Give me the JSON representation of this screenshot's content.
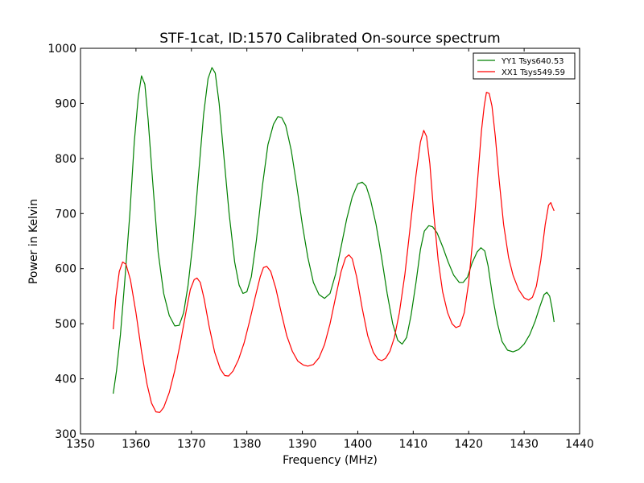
{
  "chart_data": {
    "type": "line",
    "title": "STF-1cat, ID:1570 Calibrated On-source spectrum",
    "xlabel": "Frequency (MHz)",
    "ylabel": "Power in Kelvin",
    "xlim": [
      1350,
      1440
    ],
    "ylim": [
      300,
      1000
    ],
    "xticks": [
      1350,
      1360,
      1370,
      1380,
      1390,
      1400,
      1410,
      1420,
      1430,
      1440
    ],
    "yticks": [
      300,
      400,
      500,
      600,
      700,
      800,
      900,
      1000
    ],
    "grid": false,
    "legend_position": "top-right",
    "series": [
      {
        "name": "YY1 Tsys640.53",
        "color": "#008000",
        "points": [
          [
            1355.9,
            373
          ],
          [
            1356.5,
            415
          ],
          [
            1357.2,
            480
          ],
          [
            1358.0,
            580
          ],
          [
            1358.9,
            700
          ],
          [
            1359.7,
            830
          ],
          [
            1360.4,
            910
          ],
          [
            1361.0,
            950
          ],
          [
            1361.6,
            935
          ],
          [
            1362.2,
            870
          ],
          [
            1363.0,
            760
          ],
          [
            1364.0,
            630
          ],
          [
            1365.0,
            555
          ],
          [
            1366.0,
            515
          ],
          [
            1367.0,
            496
          ],
          [
            1367.8,
            497
          ],
          [
            1368.6,
            520
          ],
          [
            1369.4,
            570
          ],
          [
            1370.3,
            650
          ],
          [
            1371.2,
            760
          ],
          [
            1372.2,
            880
          ],
          [
            1373.0,
            945
          ],
          [
            1373.7,
            965
          ],
          [
            1374.3,
            955
          ],
          [
            1375.0,
            900
          ],
          [
            1375.8,
            810
          ],
          [
            1376.8,
            700
          ],
          [
            1377.8,
            612
          ],
          [
            1378.6,
            570
          ],
          [
            1379.3,
            555
          ],
          [
            1380.0,
            558
          ],
          [
            1380.8,
            585
          ],
          [
            1381.7,
            650
          ],
          [
            1382.8,
            750
          ],
          [
            1383.8,
            825
          ],
          [
            1384.8,
            862
          ],
          [
            1385.6,
            876
          ],
          [
            1386.3,
            874
          ],
          [
            1387.0,
            860
          ],
          [
            1388.0,
            815
          ],
          [
            1389.0,
            750
          ],
          [
            1390.0,
            680
          ],
          [
            1391.0,
            620
          ],
          [
            1392.0,
            575
          ],
          [
            1393.0,
            553
          ],
          [
            1394.0,
            546
          ],
          [
            1395.0,
            555
          ],
          [
            1396.0,
            590
          ],
          [
            1397.0,
            640
          ],
          [
            1398.0,
            690
          ],
          [
            1399.0,
            730
          ],
          [
            1400.0,
            754
          ],
          [
            1400.8,
            757
          ],
          [
            1401.5,
            750
          ],
          [
            1402.3,
            725
          ],
          [
            1403.3,
            680
          ],
          [
            1404.3,
            620
          ],
          [
            1405.3,
            555
          ],
          [
            1406.3,
            500
          ],
          [
            1407.2,
            470
          ],
          [
            1408.0,
            463
          ],
          [
            1408.8,
            475
          ],
          [
            1409.6,
            515
          ],
          [
            1410.5,
            575
          ],
          [
            1411.3,
            635
          ],
          [
            1412.0,
            668
          ],
          [
            1412.8,
            678
          ],
          [
            1413.5,
            676
          ],
          [
            1414.3,
            665
          ],
          [
            1415.3,
            640
          ],
          [
            1416.3,
            612
          ],
          [
            1417.3,
            588
          ],
          [
            1418.3,
            575
          ],
          [
            1419.0,
            575
          ],
          [
            1419.8,
            585
          ],
          [
            1420.6,
            610
          ],
          [
            1421.5,
            630
          ],
          [
            1422.2,
            638
          ],
          [
            1422.9,
            632
          ],
          [
            1423.5,
            605
          ],
          [
            1424.3,
            550
          ],
          [
            1425.2,
            500
          ],
          [
            1426.0,
            468
          ],
          [
            1427.0,
            452
          ],
          [
            1428.0,
            449
          ],
          [
            1429.0,
            453
          ],
          [
            1430.0,
            463
          ],
          [
            1431.0,
            480
          ],
          [
            1432.0,
            505
          ],
          [
            1432.8,
            530
          ],
          [
            1433.6,
            553
          ],
          [
            1434.1,
            557
          ],
          [
            1434.6,
            550
          ],
          [
            1435.0,
            530
          ],
          [
            1435.4,
            503
          ]
        ]
      },
      {
        "name": "XX1 Tsys549.59",
        "color": "#ff0000",
        "points": [
          [
            1355.9,
            490
          ],
          [
            1356.4,
            550
          ],
          [
            1357.0,
            595
          ],
          [
            1357.6,
            612
          ],
          [
            1358.2,
            608
          ],
          [
            1359.0,
            580
          ],
          [
            1360.0,
            520
          ],
          [
            1361.0,
            450
          ],
          [
            1362.0,
            390
          ],
          [
            1362.8,
            356
          ],
          [
            1363.6,
            340
          ],
          [
            1364.3,
            339
          ],
          [
            1365.0,
            348
          ],
          [
            1366.0,
            375
          ],
          [
            1367.0,
            415
          ],
          [
            1368.0,
            465
          ],
          [
            1369.0,
            520
          ],
          [
            1369.8,
            562
          ],
          [
            1370.5,
            580
          ],
          [
            1371.0,
            583
          ],
          [
            1371.6,
            575
          ],
          [
            1372.3,
            545
          ],
          [
            1373.2,
            495
          ],
          [
            1374.2,
            448
          ],
          [
            1375.2,
            418
          ],
          [
            1376.0,
            406
          ],
          [
            1376.7,
            405
          ],
          [
            1377.5,
            414
          ],
          [
            1378.5,
            435
          ],
          [
            1379.5,
            465
          ],
          [
            1380.5,
            505
          ],
          [
            1381.5,
            548
          ],
          [
            1382.4,
            585
          ],
          [
            1383.0,
            602
          ],
          [
            1383.6,
            604
          ],
          [
            1384.3,
            595
          ],
          [
            1385.2,
            565
          ],
          [
            1386.2,
            520
          ],
          [
            1387.2,
            478
          ],
          [
            1388.2,
            450
          ],
          [
            1389.2,
            432
          ],
          [
            1390.2,
            425
          ],
          [
            1391.0,
            423
          ],
          [
            1392.0,
            426
          ],
          [
            1393.0,
            438
          ],
          [
            1394.0,
            462
          ],
          [
            1395.0,
            500
          ],
          [
            1396.0,
            548
          ],
          [
            1397.0,
            595
          ],
          [
            1397.8,
            620
          ],
          [
            1398.4,
            625
          ],
          [
            1399.0,
            618
          ],
          [
            1399.8,
            585
          ],
          [
            1400.8,
            528
          ],
          [
            1401.8,
            478
          ],
          [
            1402.8,
            448
          ],
          [
            1403.6,
            436
          ],
          [
            1404.3,
            433
          ],
          [
            1405.0,
            437
          ],
          [
            1405.8,
            450
          ],
          [
            1406.6,
            475
          ],
          [
            1407.5,
            520
          ],
          [
            1408.5,
            590
          ],
          [
            1409.5,
            680
          ],
          [
            1410.5,
            770
          ],
          [
            1411.3,
            830
          ],
          [
            1411.9,
            851
          ],
          [
            1412.4,
            840
          ],
          [
            1413.0,
            790
          ],
          [
            1413.7,
            700
          ],
          [
            1414.5,
            615
          ],
          [
            1415.3,
            558
          ],
          [
            1416.2,
            520
          ],
          [
            1417.0,
            500
          ],
          [
            1417.7,
            493
          ],
          [
            1418.4,
            496
          ],
          [
            1419.2,
            520
          ],
          [
            1420.0,
            575
          ],
          [
            1420.8,
            660
          ],
          [
            1421.6,
            760
          ],
          [
            1422.3,
            850
          ],
          [
            1422.8,
            895
          ],
          [
            1423.2,
            920
          ],
          [
            1423.7,
            918
          ],
          [
            1424.2,
            895
          ],
          [
            1424.8,
            840
          ],
          [
            1425.5,
            760
          ],
          [
            1426.3,
            680
          ],
          [
            1427.2,
            620
          ],
          [
            1428.0,
            588
          ],
          [
            1429.0,
            562
          ],
          [
            1430.0,
            547
          ],
          [
            1430.8,
            543
          ],
          [
            1431.5,
            548
          ],
          [
            1432.2,
            568
          ],
          [
            1433.0,
            615
          ],
          [
            1433.8,
            680
          ],
          [
            1434.4,
            715
          ],
          [
            1434.8,
            720
          ],
          [
            1435.1,
            712
          ],
          [
            1435.4,
            705
          ]
        ]
      }
    ]
  }
}
